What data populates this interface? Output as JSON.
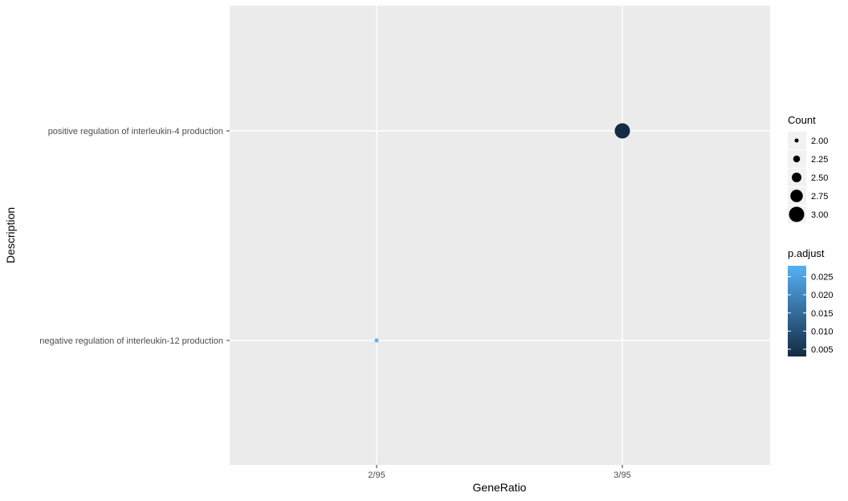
{
  "chart_data": {
    "type": "scatter",
    "title": "",
    "xlabel": "GeneRatio",
    "ylabel": "Description",
    "x_categories": [
      "2/95",
      "3/95"
    ],
    "y_categories": [
      "negative regulation of interleukin-12 production",
      "positive regulation of interleukin-4 production"
    ],
    "points": [
      {
        "x": "3/95",
        "y": "positive regulation of interleukin-4 production",
        "count": 3,
        "p_adjust": 0.003
      },
      {
        "x": "2/95",
        "y": "negative regulation of interleukin-12 production",
        "count": 2,
        "p_adjust": 0.028
      }
    ],
    "grid": true,
    "panel_background": "#ebebeb",
    "legend_position": "right",
    "size_legend": {
      "title": "Count",
      "values": [
        2.0,
        2.25,
        2.5,
        2.75,
        3.0
      ],
      "labels": [
        "2.00",
        "2.25",
        "2.50",
        "2.75",
        "3.00"
      ]
    },
    "color_legend": {
      "title": "p.adjust",
      "low_color": "#132b43",
      "high_color": "#56b1f7",
      "range": [
        0.003,
        0.028
      ],
      "ticks": [
        0.005,
        0.01,
        0.015,
        0.02,
        0.025
      ],
      "labels": [
        "0.005",
        "0.010",
        "0.015",
        "0.020",
        "0.025"
      ]
    }
  }
}
